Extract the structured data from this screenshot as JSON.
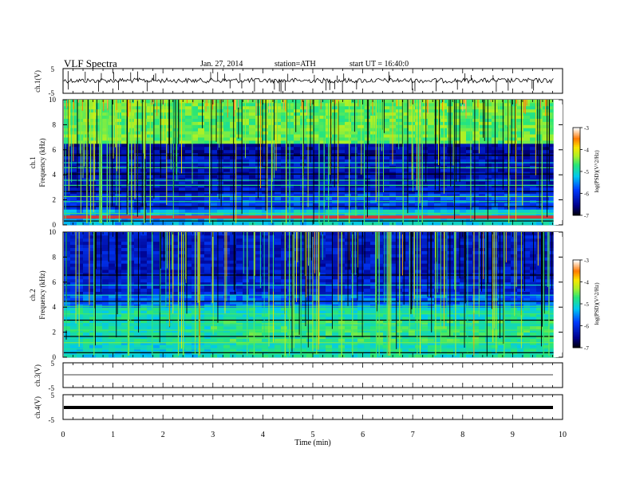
{
  "header": {
    "title": "VLF  Spectra",
    "date": "Jan.  27,  2014",
    "station": "station=ATH",
    "start": "start  UT  =    16:40:0"
  },
  "chart_data": [
    {
      "id": "ch1-waveform",
      "type": "line",
      "ylabel": "ch.1(V)",
      "ylim": [
        -5,
        5
      ],
      "yticks": [
        "5",
        "-5"
      ],
      "xlim": [
        0,
        10
      ],
      "data_end_min": 9.82
    },
    {
      "id": "ch1-spectrogram",
      "type": "heatmap",
      "ylabel_channel": "ch.1",
      "ylabel": "Frequency  (kHz)",
      "ylim": [
        0,
        10
      ],
      "yticks": [
        "0",
        "2",
        "4",
        "6",
        "8",
        "10"
      ],
      "xlim": [
        0,
        10
      ],
      "colorbar": {
        "label": "log(PSD)(V^2/Hz)",
        "range": [
          -7,
          -3
        ],
        "ticks": [
          "-3",
          "-4",
          "-5",
          "-6",
          "-7"
        ]
      }
    },
    {
      "id": "ch2-spectrogram",
      "type": "heatmap",
      "ylabel_channel": "ch.2",
      "ylabel": "Frequency  (kHz)",
      "ylim": [
        0,
        10
      ],
      "yticks": [
        "0",
        "2",
        "4",
        "6",
        "8",
        "10"
      ],
      "xlim": [
        0,
        10
      ],
      "colorbar": {
        "label": "log(PSD)(V^2/Hz)",
        "range": [
          -7,
          -3
        ],
        "ticks": [
          "-3",
          "-4",
          "-5",
          "-6",
          "-7"
        ]
      }
    },
    {
      "id": "ch3-waveform",
      "type": "line",
      "ylabel": "ch.3(V)",
      "ylim": [
        -5,
        5
      ],
      "yticks": [
        "5",
        "-5"
      ],
      "xlim": [
        0,
        10
      ]
    },
    {
      "id": "ch4-waveform",
      "type": "line",
      "ylabel": "ch.4(V)",
      "ylim": [
        -5,
        5
      ],
      "yticks": [
        "5",
        "-5"
      ],
      "xlim": [
        0,
        10
      ],
      "xlabel": "Time  (min)",
      "xticks": [
        "0",
        "1",
        "2",
        "3",
        "4",
        "5",
        "6",
        "7",
        "8",
        "9",
        "10"
      ]
    }
  ]
}
